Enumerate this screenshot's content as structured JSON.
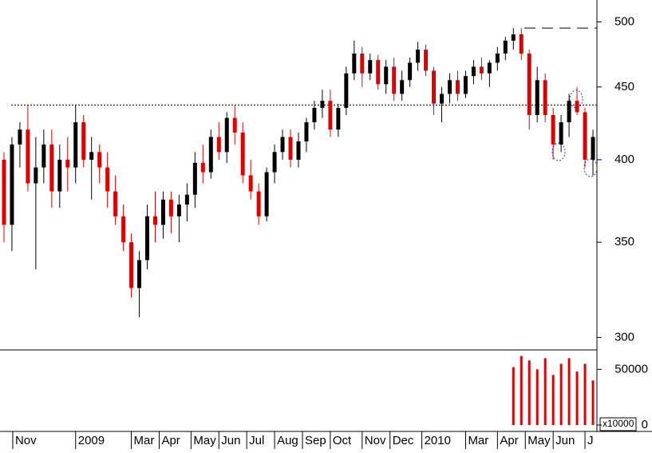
{
  "chart_data": [
    {
      "type": "candlestick",
      "log_scale": true,
      "up_color": "#000000",
      "down_color": "#e00000",
      "xlim": [
        0,
        75
      ],
      "ylim": [
        294,
        518
      ],
      "yticks": [
        300,
        350,
        400,
        450,
        500
      ],
      "xticks": [
        {
          "value": 1.6,
          "label": "Nov"
        },
        {
          "value": 9.5,
          "label": "2009"
        },
        {
          "value": 16.5,
          "label": "Mar"
        },
        {
          "value": 20,
          "label": "Apr"
        },
        {
          "value": 24,
          "label": "May"
        },
        {
          "value": 27.5,
          "label": "Jun"
        },
        {
          "value": 31,
          "label": "Jul"
        },
        {
          "value": 34.5,
          "label": "Aug"
        },
        {
          "value": 38,
          "label": "Sep"
        },
        {
          "value": 41.5,
          "label": "Oct"
        },
        {
          "value": 45.5,
          "label": "Nov"
        },
        {
          "value": 49,
          "label": "Dec"
        },
        {
          "value": 53,
          "label": "2010"
        },
        {
          "value": 58.5,
          "label": "Mar"
        },
        {
          "value": 62.5,
          "label": "Apr"
        },
        {
          "value": 66,
          "label": "May"
        },
        {
          "value": 69.5,
          "label": "Jun"
        },
        {
          "value": 73.5,
          "label": "J"
        }
      ],
      "reference_lines": [
        437,
        495
      ],
      "x": [
        0.5,
        1.5,
        2.5,
        3.5,
        4.5,
        5.5,
        6.5,
        7.5,
        8.5,
        9.5,
        10.5,
        11.5,
        12.5,
        13.5,
        14.5,
        15.5,
        16.5,
        17.5,
        18.5,
        19.5,
        20.5,
        21.5,
        22.5,
        23.5,
        24.5,
        25.5,
        26.5,
        27.5,
        28.5,
        29.5,
        30.5,
        31.5,
        32.5,
        33.5,
        34.5,
        35.5,
        36.5,
        37.5,
        38.5,
        39.5,
        40.5,
        41.5,
        42.5,
        43.5,
        44.5,
        45.5,
        46.5,
        47.5,
        48.5,
        49.5,
        50.5,
        51.5,
        52.5,
        53.5,
        54.5,
        55.5,
        56.5,
        57.5,
        58.5,
        59.5,
        60.5,
        61.5,
        62.5,
        63.5,
        64.5,
        65.5,
        66.5,
        67.5,
        68.5,
        69.5,
        70.5,
        71.5,
        72.5,
        73.5,
        74.5
      ],
      "open": [
        400,
        360,
        410,
        420,
        385,
        395,
        410,
        380,
        400,
        395,
        425,
        400,
        405,
        395,
        380,
        365,
        350,
        325,
        340,
        365,
        360,
        375,
        365,
        372,
        378,
        398,
        392,
        415,
        405,
        428,
        418,
        390,
        380,
        365,
        392,
        405,
        415,
        400,
        412,
        425,
        435,
        440,
        420,
        435,
        460,
        475,
        460,
        470,
        452,
        465,
        445,
        455,
        468,
        478,
        462,
        438,
        445,
        455,
        445,
        458,
        465,
        460,
        468,
        475,
        485,
        490,
        475,
        430,
        455,
        430,
        410,
        425,
        440,
        432,
        400
      ],
      "high": [
        405,
        415,
        425,
        437,
        415,
        420,
        420,
        410,
        415,
        437,
        430,
        415,
        410,
        405,
        390,
        372,
        355,
        345,
        372,
        380,
        380,
        380,
        378,
        385,
        405,
        410,
        420,
        425,
        432,
        437,
        425,
        400,
        385,
        395,
        410,
        420,
        420,
        418,
        428,
        440,
        448,
        448,
        438,
        465,
        485,
        480,
        475,
        474,
        470,
        472,
        462,
        472,
        484,
        482,
        465,
        450,
        460,
        462,
        462,
        470,
        472,
        470,
        480,
        488,
        495,
        495,
        478,
        465,
        460,
        435,
        430,
        445,
        450,
        435,
        420
      ],
      "low": [
        350,
        345,
        395,
        380,
        335,
        385,
        370,
        370,
        380,
        385,
        395,
        375,
        385,
        370,
        360,
        345,
        320,
        310,
        335,
        350,
        352,
        355,
        350,
        362,
        370,
        385,
        388,
        400,
        398,
        410,
        385,
        375,
        360,
        362,
        385,
        400,
        395,
        395,
        405,
        420,
        428,
        415,
        415,
        430,
        455,
        450,
        455,
        448,
        445,
        440,
        440,
        450,
        462,
        458,
        430,
        425,
        438,
        440,
        442,
        452,
        455,
        450,
        462,
        470,
        478,
        470,
        420,
        425,
        425,
        400,
        405,
        415,
        430,
        395,
        390
      ],
      "close": [
        360,
        410,
        420,
        385,
        395,
        410,
        380,
        400,
        395,
        425,
        400,
        405,
        395,
        380,
        365,
        350,
        325,
        340,
        365,
        360,
        375,
        365,
        372,
        378,
        398,
        392,
        415,
        405,
        428,
        418,
        390,
        380,
        365,
        392,
        405,
        415,
        400,
        412,
        425,
        435,
        440,
        420,
        435,
        460,
        475,
        460,
        470,
        452,
        465,
        445,
        455,
        468,
        478,
        462,
        438,
        445,
        455,
        445,
        458,
        465,
        460,
        468,
        475,
        485,
        490,
        475,
        430,
        455,
        430,
        410,
        425,
        440,
        432,
        400,
        415
      ]
    },
    {
      "type": "bar",
      "color": "#e00000",
      "ylabel": "x10000",
      "xlim": [
        0,
        75
      ],
      "ylim": [
        0,
        66000
      ],
      "yticks": [
        0,
        50000
      ],
      "x": [
        64.5,
        65.5,
        66.5,
        67.5,
        68.5,
        69.5,
        70.5,
        71.5,
        72.5,
        73.5,
        74.5
      ],
      "values": [
        52000,
        62000,
        58000,
        50000,
        60000,
        45000,
        55000,
        60000,
        48000,
        55000,
        40000
      ]
    }
  ]
}
